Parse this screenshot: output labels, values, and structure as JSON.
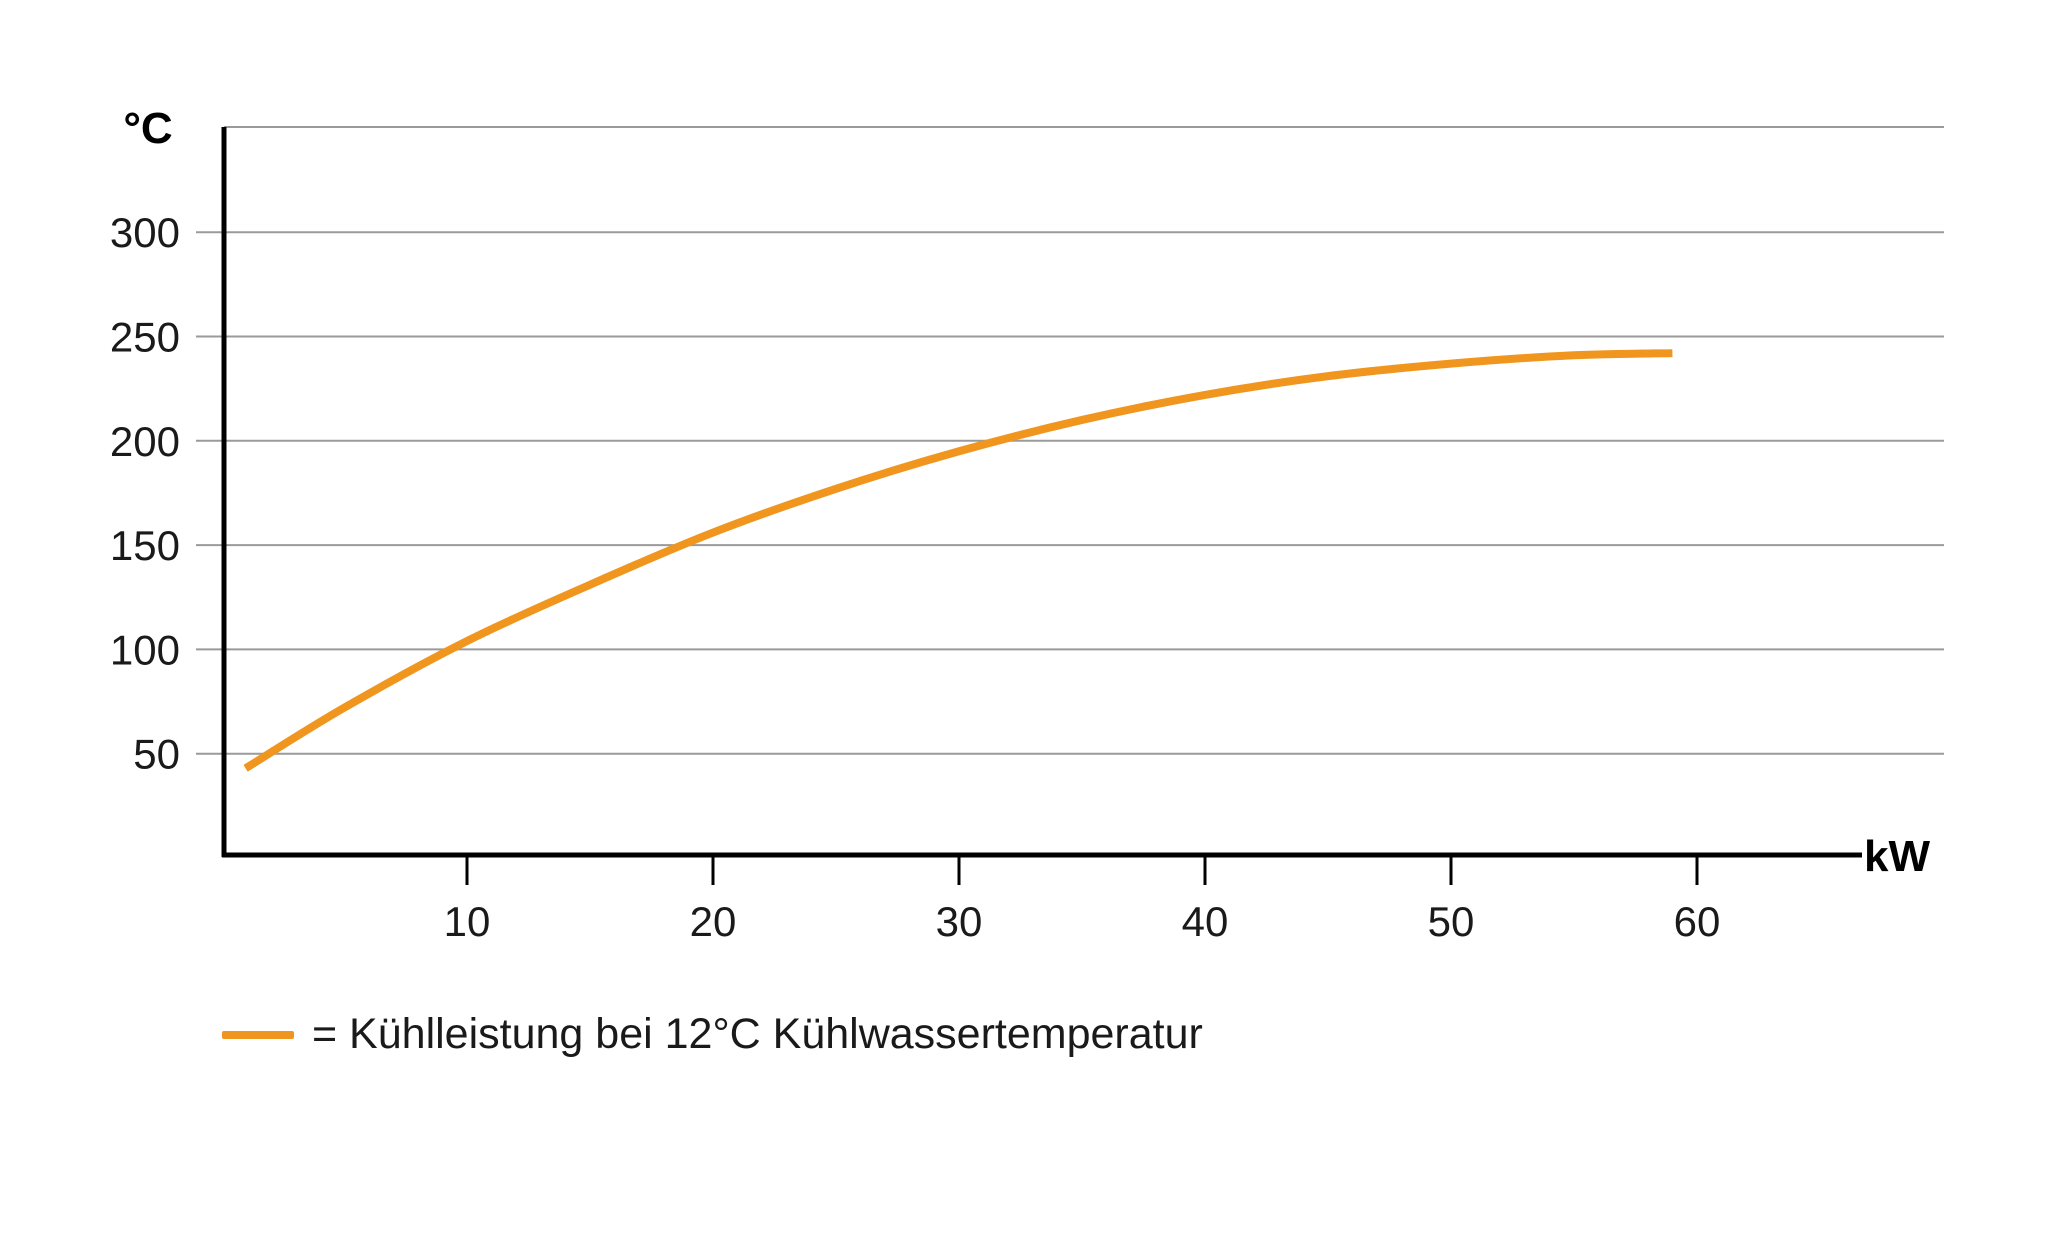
{
  "chart_data": {
    "type": "line",
    "xlabel": "kW",
    "ylabel": "°C",
    "xlim": [
      0,
      70
    ],
    "ylim": [
      0,
      350
    ],
    "x_ticks": [
      10,
      20,
      30,
      40,
      50,
      60
    ],
    "y_ticks": [
      50,
      100,
      150,
      200,
      250,
      300
    ],
    "grid": true,
    "legend": "bottom-left",
    "series": [
      {
        "name": "= Kühlleistung bei 12°C Kühlwassertemperatur",
        "color": "#f0961e",
        "points": [
          {
            "x": 1,
            "y": 43
          },
          {
            "x": 5,
            "y": 72
          },
          {
            "x": 10,
            "y": 104
          },
          {
            "x": 15,
            "y": 131
          },
          {
            "x": 20,
            "y": 156
          },
          {
            "x": 25,
            "y": 177
          },
          {
            "x": 30,
            "y": 195
          },
          {
            "x": 35,
            "y": 210
          },
          {
            "x": 40,
            "y": 222
          },
          {
            "x": 45,
            "y": 231
          },
          {
            "x": 50,
            "y": 237
          },
          {
            "x": 55,
            "y": 241
          },
          {
            "x": 59,
            "y": 242
          }
        ]
      }
    ]
  }
}
